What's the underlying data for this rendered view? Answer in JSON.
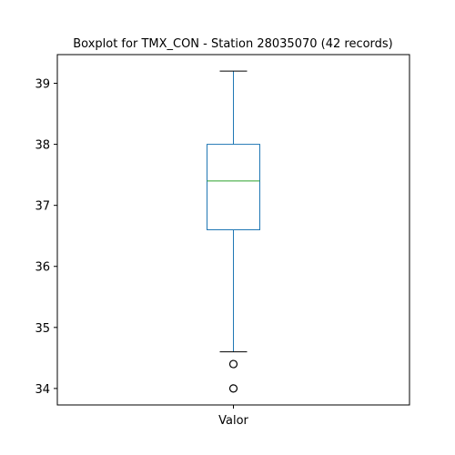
{
  "chart_data": {
    "type": "boxplot",
    "title": "Boxplot for TMX_CON - Station 28035070 (42 records)",
    "categories": [
      "Valor"
    ],
    "yticks": [
      34,
      35,
      36,
      37,
      38,
      39
    ],
    "ylim": [
      33.73,
      39.47
    ],
    "grid": false,
    "box": {
      "whisker_low": 34.6,
      "q1": 36.6,
      "median": 37.4,
      "q3": 38.0,
      "whisker_high": 39.2,
      "outliers": [
        34.4,
        34.0
      ]
    },
    "colors": {
      "box": "#1f77b4",
      "median": "#2ca02c",
      "caps": "#000000",
      "outlier": "#000000"
    }
  }
}
